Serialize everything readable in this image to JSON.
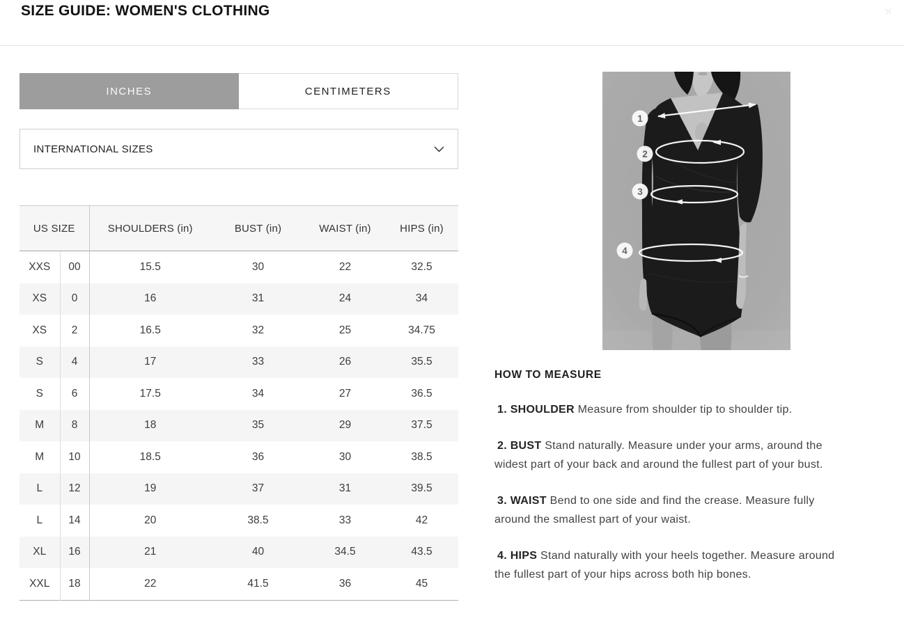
{
  "page": {
    "title": "SIZE GUIDE: WOMEN'S CLOTHING",
    "close_glyph": "✕"
  },
  "tabs": {
    "inches": "INCHES",
    "centimeters": "CENTIMETERS",
    "active": "INCHES"
  },
  "dropdown": {
    "selected": "INTERNATIONAL SIZES"
  },
  "table": {
    "headers": {
      "us_size": "US SIZE",
      "shoulders": "SHOULDERS (in)",
      "bust": "BUST (in)",
      "waist": "WAIST (in)",
      "hips": "HIPS (in)"
    },
    "rows": [
      {
        "size": "XXS",
        "num": "00",
        "shoulders": "15.5",
        "bust": "30",
        "waist": "22",
        "hips": "32.5"
      },
      {
        "size": "XS",
        "num": "0",
        "shoulders": "16",
        "bust": "31",
        "waist": "24",
        "hips": "34"
      },
      {
        "size": "XS",
        "num": "2",
        "shoulders": "16.5",
        "bust": "32",
        "waist": "25",
        "hips": "34.75"
      },
      {
        "size": "S",
        "num": "4",
        "shoulders": "17",
        "bust": "33",
        "waist": "26",
        "hips": "35.5"
      },
      {
        "size": "S",
        "num": "6",
        "shoulders": "17.5",
        "bust": "34",
        "waist": "27",
        "hips": "36.5"
      },
      {
        "size": "M",
        "num": "8",
        "shoulders": "18",
        "bust": "35",
        "waist": "29",
        "hips": "37.5"
      },
      {
        "size": "M",
        "num": "10",
        "shoulders": "18.5",
        "bust": "36",
        "waist": "30",
        "hips": "38.5"
      },
      {
        "size": "L",
        "num": "12",
        "shoulders": "19",
        "bust": "37",
        "waist": "31",
        "hips": "39.5"
      },
      {
        "size": "L",
        "num": "14",
        "shoulders": "20",
        "bust": "38.5",
        "waist": "33",
        "hips": "42"
      },
      {
        "size": "XL",
        "num": "16",
        "shoulders": "21",
        "bust": "40",
        "waist": "34.5",
        "hips": "43.5"
      },
      {
        "size": "XXL",
        "num": "18",
        "shoulders": "22",
        "bust": "41.5",
        "waist": "36",
        "hips": "45"
      }
    ]
  },
  "measure_guide": {
    "heading": "HOW TO MEASURE",
    "items": [
      {
        "label": "1. SHOULDER",
        "text": "Measure from shoulder tip to shoulder tip."
      },
      {
        "label": "2. BUST",
        "text": "Stand naturally. Measure under your arms, around the widest part of your back and around the fullest part of your bust."
      },
      {
        "label": "3. WAIST",
        "text": "Bend to one side and find the crease. Measure fully around the smallest part of your waist."
      },
      {
        "label": "4. HIPS",
        "text": "Stand naturally with your heels together. Measure around the fullest part of your hips across both hip bones."
      }
    ]
  },
  "figure": {
    "markers": [
      "1",
      "2",
      "3",
      "4"
    ]
  },
  "colors": {
    "tab_active_bg": "#9d9d9d",
    "tab_active_text": "#fafafa",
    "row_alt_bg": "#f5f5f5",
    "table_border": "#c9c9c9",
    "photo_bg": "#a9a9a9",
    "overlay": "#ffffff",
    "text": "#333333"
  }
}
